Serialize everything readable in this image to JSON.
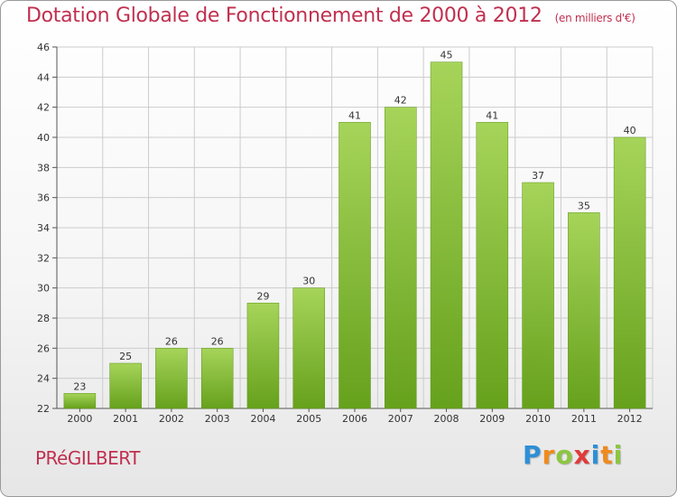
{
  "header": {
    "title": "Dotation Globale de Fonctionnement de 2000 à 2012",
    "subtitle": "(en milliers d'€)"
  },
  "footer": {
    "commune": "PRéGILBERT",
    "logo": "Proxiti"
  },
  "colors": {
    "title": "#c0304f",
    "bar_light": "#a6d45a",
    "bar_dark": "#66a11c",
    "grid": "#cccccc"
  },
  "chart_data": {
    "type": "bar",
    "title": "Dotation Globale de Fonctionnement de 2000 à 2012",
    "subtitle": "(en milliers d'€)",
    "xlabel": "",
    "ylabel": "",
    "categories": [
      "2000",
      "2001",
      "2002",
      "2003",
      "2004",
      "2005",
      "2006",
      "2007",
      "2008",
      "2009",
      "2010",
      "2011",
      "2012"
    ],
    "values": [
      23,
      25,
      26,
      26,
      29,
      30,
      41,
      42,
      45,
      41,
      37,
      35,
      40
    ],
    "ylim": [
      22,
      46
    ],
    "yticks": [
      22,
      24,
      26,
      28,
      30,
      32,
      34,
      36,
      38,
      40,
      42,
      44,
      46
    ],
    "grid": true,
    "legend": "none"
  }
}
